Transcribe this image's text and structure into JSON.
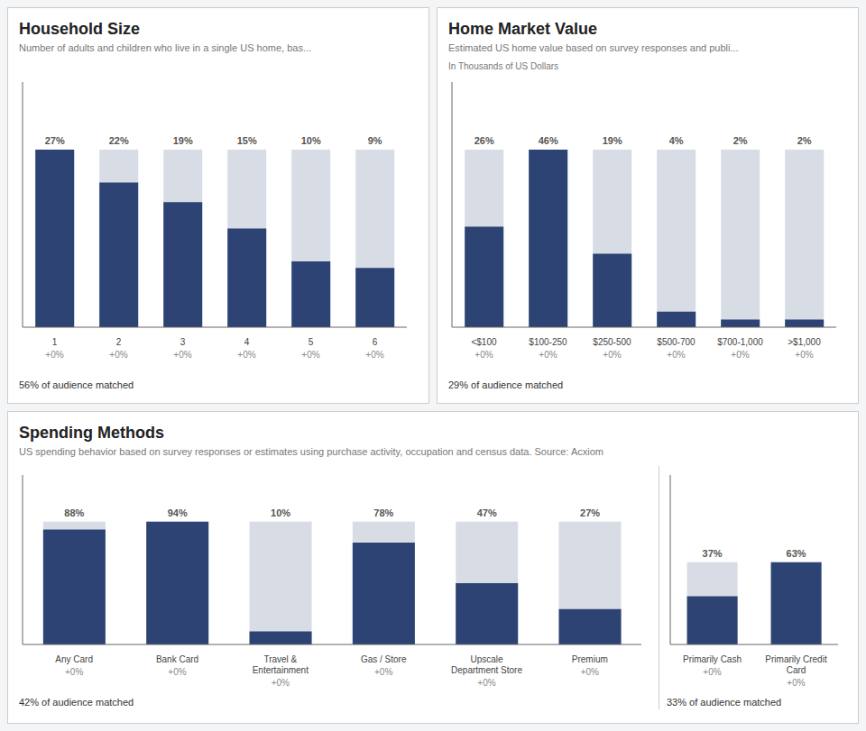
{
  "chart_data": [
    {
      "type": "bar",
      "title": "Household Size",
      "subtitle": "Number of adults and children who live in a single US home, bas...",
      "categories": [
        "1",
        "2",
        "3",
        "4",
        "5",
        "6"
      ],
      "x_sublabels": [
        "+0%",
        "+0%",
        "+0%",
        "+0%",
        "+0%",
        "+0%"
      ],
      "series": [
        {
          "color": "#d8dce5",
          "values": [
            27,
            27,
            27,
            27,
            27,
            27
          ]
        },
        {
          "color": "#2d4373",
          "values": [
            27,
            22,
            19,
            15,
            10,
            9
          ],
          "value_labels": [
            "27%",
            "22%",
            "19%",
            "15%",
            "10%",
            "9%"
          ]
        }
      ],
      "ylim": [
        0,
        37.26
      ],
      "tick_labels": false,
      "data_labels": true,
      "annotations": [
        "56% of audience matched"
      ]
    },
    {
      "type": "bar",
      "title": "Home Market Value",
      "subtitle": "Estimated US home value based on survey responses and publi...",
      "ylabel": "In Thousands of US Dollars",
      "categories": [
        "<$100",
        "$100-250",
        "$250-500",
        "$500-700",
        "$700-1,000",
        ">$1,000"
      ],
      "x_sublabels": [
        "+0%",
        "+0%",
        "+0%",
        "+0%",
        "+0%",
        "+0%"
      ],
      "series": [
        {
          "color": "#d8dce5",
          "values": [
            46,
            46,
            46,
            46,
            46,
            46
          ]
        },
        {
          "color": "#2d4373",
          "values": [
            26,
            46,
            19,
            4,
            2,
            2
          ],
          "value_labels": [
            "26%",
            "46%",
            "19%",
            "4%",
            "2%",
            "2%"
          ]
        }
      ],
      "ylim": [
        0,
        63.48
      ],
      "tick_labels": false,
      "data_labels": true,
      "annotations": [
        "29% of audience matched"
      ]
    },
    {
      "type": "bar",
      "title": "Spending Methods",
      "subtitle": "US spending behavior based on survey responses or estimates using purchase activity, occupation and census data. Source: Acxiom",
      "categories": [
        "Any Card",
        "Bank Card",
        "Travel &\nEntertainment",
        "Gas / Store",
        "Upscale\nDepartment Store",
        "Premium"
      ],
      "x_sublabels": [
        "+0%",
        "+0%",
        "+0%",
        "+0%",
        "+0%",
        "+0%"
      ],
      "series": [
        {
          "color": "#d8dce5",
          "values": [
            94,
            94,
            94,
            94,
            94,
            94
          ]
        },
        {
          "color": "#2d4373",
          "values": [
            88,
            94,
            10,
            78,
            47,
            27
          ],
          "value_labels": [
            "88%",
            "94%",
            "10%",
            "78%",
            "47%",
            "27%"
          ]
        }
      ],
      "ylim": [
        0,
        129.72
      ],
      "tick_labels": false,
      "data_labels": true,
      "annotations": [
        "42% of audience matched"
      ]
    },
    {
      "type": "bar",
      "categories": [
        "Primarily Cash",
        "Primarily Credit\nCard"
      ],
      "x_sublabels": [
        "+0%",
        "+0%"
      ],
      "series": [
        {
          "color": "#d8dce5",
          "values": [
            63,
            63
          ]
        },
        {
          "color": "#2d4373",
          "values": [
            37,
            63
          ],
          "value_labels": [
            "37%",
            "63%"
          ]
        }
      ],
      "ylim": [
        0,
        129.72
      ],
      "tick_labels": false,
      "data_labels": true,
      "annotations": [
        "33% of audience matched"
      ]
    }
  ]
}
